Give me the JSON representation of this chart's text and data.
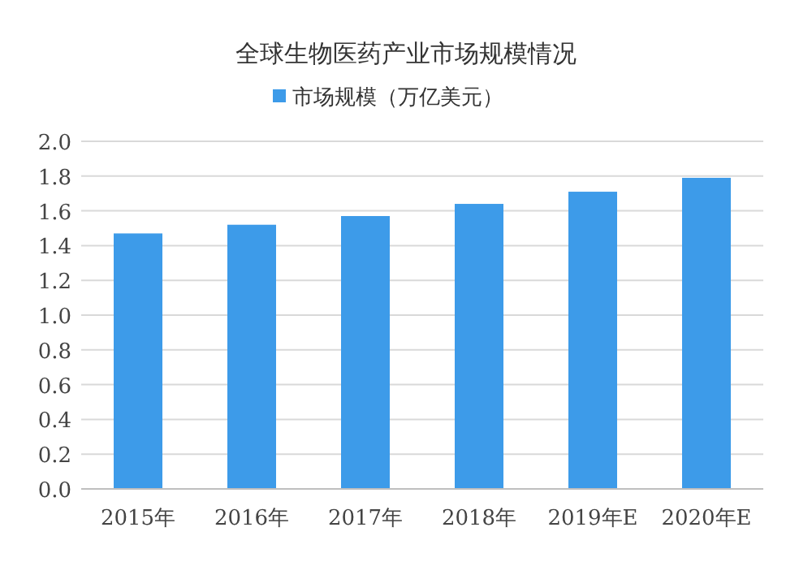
{
  "chart_data": {
    "type": "bar",
    "title": "全球生物医药产业市场规模情况",
    "categories": [
      "2015年",
      "2016年",
      "2017年",
      "2018年",
      "2019年E",
      "2020年E"
    ],
    "series": [
      {
        "name": "市场规模（万亿美元）",
        "color": "#3d9be9",
        "values": [
          1.47,
          1.52,
          1.57,
          1.64,
          1.71,
          1.79
        ]
      }
    ],
    "ylim": [
      0,
      2
    ],
    "yticks": [
      {
        "value": 0,
        "label": "0.0"
      },
      {
        "value": 0.2,
        "label": "0.2"
      },
      {
        "value": 0.4,
        "label": "0.4"
      },
      {
        "value": 0.6,
        "label": "0.6"
      },
      {
        "value": 0.8,
        "label": "0.8"
      },
      {
        "value": 1,
        "label": "1.0"
      },
      {
        "value": 1.2,
        "label": "1.2"
      },
      {
        "value": 1.4,
        "label": "1.4"
      },
      {
        "value": 1.6,
        "label": "1.6"
      },
      {
        "value": 1.8,
        "label": "1.8"
      },
      {
        "value": 2,
        "label": "2.0"
      }
    ],
    "grid": "y",
    "legend": "top"
  }
}
